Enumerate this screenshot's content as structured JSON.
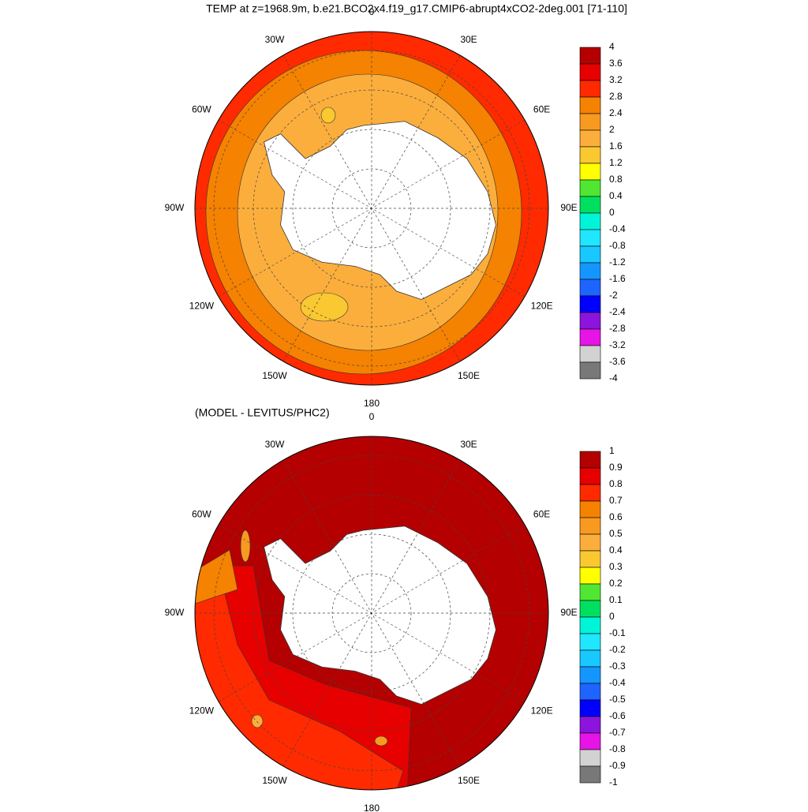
{
  "title": "TEMP at z=1968.9m, b.e21.BCO2x4.f19_g17.CMIP6-abrupt4xCO2-2deg.001 [71-110]",
  "subtitle": "(MODEL - LEVITUS/PHC2)",
  "panels": [
    {
      "lon_labels": [
        "0",
        "30E",
        "60E",
        "90E",
        "120E",
        "150E",
        "180",
        "150W",
        "120W",
        "90W",
        "60W",
        "30W"
      ],
      "colorbar": {
        "levels": [
          4,
          3.6,
          3.2,
          2.8,
          2.4,
          2,
          1.6,
          1.2,
          0.8,
          0.4,
          0,
          -0.4,
          -0.8,
          -1.2,
          -1.6,
          -2,
          -2.4,
          -2.8,
          -3.2,
          -3.6,
          -4
        ],
        "colors": [
          "#b40000",
          "#e60000",
          "#ff2a00",
          "#f58200",
          "#f89a20",
          "#fcae3c",
          "#fac830",
          "#ffff00",
          "#50e632",
          "#00e060",
          "#00f5d8",
          "#20e6ff",
          "#18c8ff",
          "#1496ff",
          "#1e64ff",
          "#0000ff",
          "#8c14dc",
          "#e614e6",
          "#d2d2d2",
          "#787878"
        ]
      }
    },
    {
      "lon_labels": [
        "0",
        "30E",
        "60E",
        "90E",
        "120E",
        "150E",
        "180",
        "150W",
        "120W",
        "90W",
        "60W",
        "30W"
      ],
      "colorbar": {
        "levels": [
          1,
          0.9,
          0.8,
          0.7,
          0.6,
          0.5,
          0.4,
          0.3,
          0.2,
          0.1,
          0,
          -0.1,
          -0.2,
          -0.3,
          -0.4,
          -0.5,
          -0.6,
          -0.7,
          -0.8,
          -0.9,
          -1
        ],
        "colors": [
          "#b40000",
          "#e60000",
          "#ff2a00",
          "#f58200",
          "#f89a20",
          "#fcae3c",
          "#fac830",
          "#ffff00",
          "#50e632",
          "#00e060",
          "#00f5d8",
          "#20e6ff",
          "#18c8ff",
          "#1496ff",
          "#1e64ff",
          "#0000ff",
          "#8c14dc",
          "#e614e6",
          "#d2d2d2",
          "#787878"
        ]
      }
    }
  ]
}
